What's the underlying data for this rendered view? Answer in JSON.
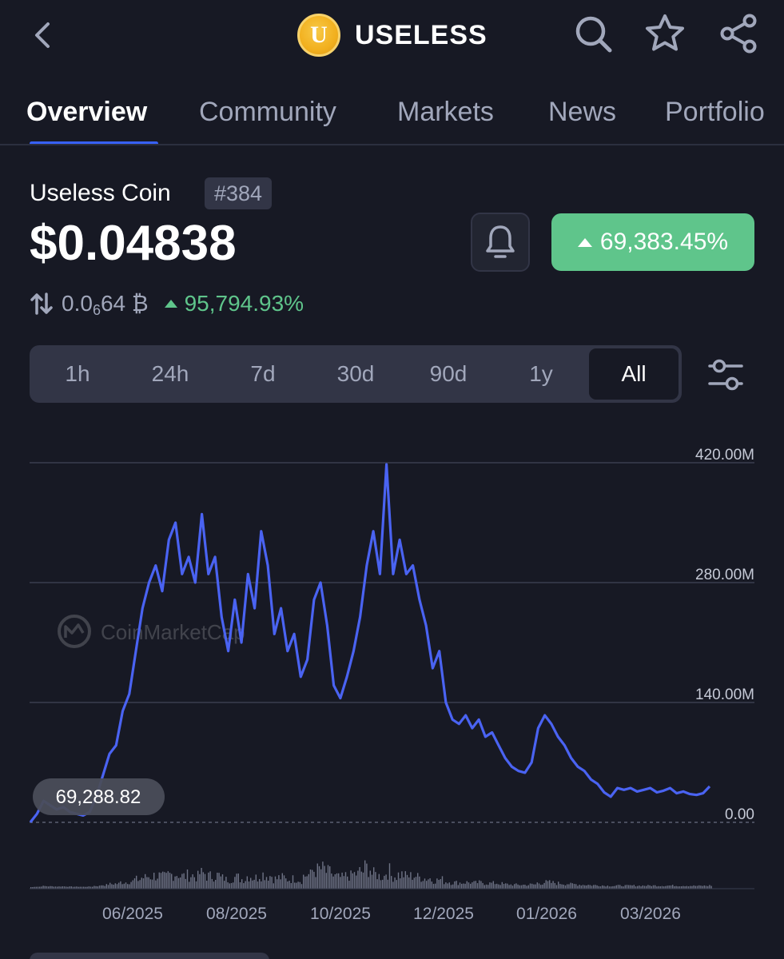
{
  "header": {
    "coin_logo_letter": "U",
    "title": "USELESS",
    "icons": [
      "back-icon",
      "search-icon",
      "star-icon",
      "share-icon"
    ]
  },
  "tabs": [
    {
      "label": "Overview",
      "active": true
    },
    {
      "label": "Community",
      "active": false
    },
    {
      "label": "Markets",
      "active": false
    },
    {
      "label": "News",
      "active": false
    },
    {
      "label": "Portfolio",
      "active": false
    }
  ],
  "coin": {
    "name": "Useless Coin",
    "rank": "#384",
    "price": "$0.04838",
    "change_pct": "69,383.45%",
    "btc_price_prefix": "0.0",
    "btc_price_subscript": "6",
    "btc_price_suffix": "64 ₿",
    "btc_change_pct": "95,794.93%"
  },
  "range_selector": {
    "options": [
      "1h",
      "24h",
      "7d",
      "30d",
      "90d",
      "1y",
      "All"
    ],
    "selected": "All"
  },
  "colors": {
    "background": "#171924",
    "accent": "#3861fb",
    "positive": "#5fc58b",
    "line": "#4a63f2",
    "muted_text": "#a1a7bb"
  },
  "chart_data": {
    "type": "line",
    "watermark": "CoinMarketCap",
    "y_unit": "market cap",
    "ylim": [
      0,
      420000000
    ],
    "y_ticks": [
      "420.00M",
      "280.00M",
      "140.00M",
      "0.00"
    ],
    "y_tick_values": [
      420000000,
      280000000,
      140000000,
      0
    ],
    "x_ticks": [
      "06/2025",
      "08/2025",
      "10/2025",
      "12/2025",
      "01/2026",
      "03/2026"
    ],
    "start_label": "69,288.82",
    "grid": true,
    "series": [
      {
        "values": [
          69288,
          10000000,
          25000000,
          20000000,
          15000000,
          18000000,
          12000000,
          10000000,
          8000000,
          12000000,
          30000000,
          55000000,
          80000000,
          90000000,
          130000000,
          150000000,
          200000000,
          250000000,
          280000000,
          300000000,
          270000000,
          330000000,
          350000000,
          290000000,
          310000000,
          280000000,
          360000000,
          290000000,
          310000000,
          240000000,
          200000000,
          260000000,
          210000000,
          290000000,
          250000000,
          340000000,
          300000000,
          220000000,
          250000000,
          200000000,
          220000000,
          170000000,
          190000000,
          260000000,
          280000000,
          230000000,
          160000000,
          145000000,
          170000000,
          200000000,
          240000000,
          300000000,
          340000000,
          290000000,
          418000000,
          290000000,
          330000000,
          290000000,
          300000000,
          260000000,
          230000000,
          180000000,
          200000000,
          140000000,
          120000000,
          115000000,
          125000000,
          110000000,
          120000000,
          100000000,
          105000000,
          90000000,
          75000000,
          65000000,
          60000000,
          58000000,
          70000000,
          110000000,
          125000000,
          115000000,
          100000000,
          90000000,
          75000000,
          65000000,
          60000000,
          50000000,
          45000000,
          35000000,
          30000000,
          40000000,
          38000000,
          40000000,
          36000000,
          38000000,
          40000000,
          35000000,
          37000000,
          40000000,
          34000000,
          36000000,
          33000000,
          32000000,
          34000000,
          42000000
        ]
      }
    ],
    "volume_bars": "present (unlabeled)"
  }
}
